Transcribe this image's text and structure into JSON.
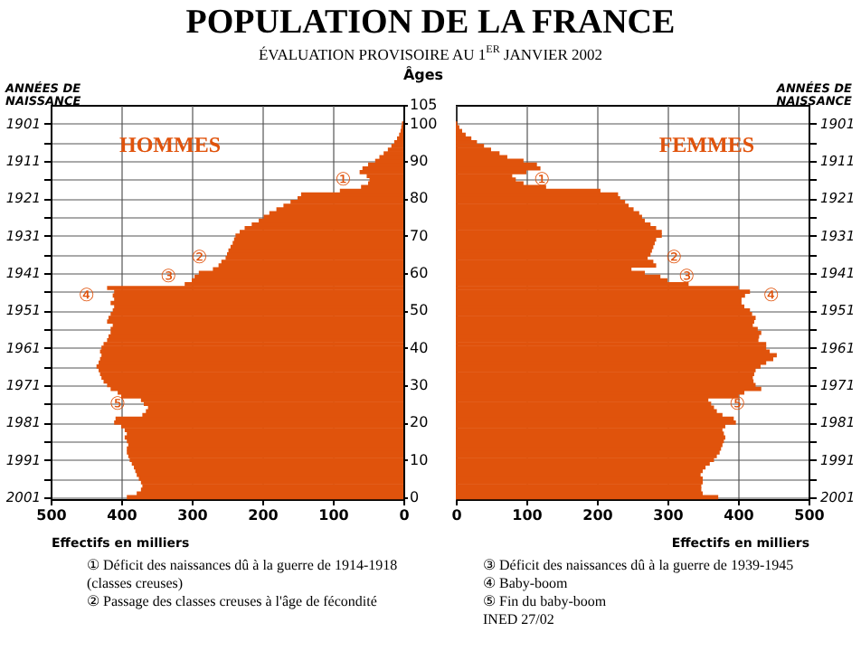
{
  "chart_data": [
    {
      "type": "bar",
      "orientation": "horizontal",
      "title": "POPULATION DE LA FRANCE",
      "subtitle": "ÉVALUATION PROVISOIRE AU 1$^{ER}$ JANVIER 2002",
      "xlabel": "Effectifs en milliers",
      "ylabel": "Âges",
      "y2label": "ANNÉES DE NAISSANCE",
      "x": [
        0,
        1,
        2,
        3,
        4,
        5,
        6,
        7,
        8,
        9,
        10,
        11,
        12,
        13,
        14,
        15,
        16,
        17,
        18,
        19,
        20,
        21,
        22,
        23,
        24,
        25,
        26,
        27,
        28,
        29,
        30,
        31,
        32,
        33,
        34,
        35,
        36,
        37,
        38,
        39,
        40,
        41,
        42,
        43,
        44,
        45,
        46,
        47,
        48,
        49,
        50,
        51,
        52,
        53,
        54,
        55,
        56,
        57,
        58,
        59,
        60,
        61,
        62,
        63,
        64,
        65,
        66,
        67,
        68,
        69,
        70,
        71,
        72,
        73,
        74,
        75,
        76,
        77,
        78,
        79,
        80,
        81,
        82,
        83,
        84,
        85,
        86,
        87,
        88,
        89,
        90,
        91,
        92,
        93,
        94,
        95,
        96,
        97,
        98,
        99,
        100
      ],
      "series": [
        {
          "name": "HOMMES",
          "color": "#e0530c",
          "values": [
            392,
            378,
            372,
            370,
            372,
            375,
            378,
            380,
            382,
            385,
            388,
            390,
            392,
            392,
            390,
            392,
            395,
            392,
            395,
            400,
            410,
            408,
            370,
            365,
            362,
            368,
            372,
            400,
            405,
            415,
            420,
            425,
            428,
            430,
            432,
            435,
            432,
            430,
            428,
            430,
            428,
            425,
            420,
            418,
            415,
            415,
            412,
            420,
            418,
            415,
            412,
            410,
            415,
            410,
            412,
            410,
            420,
            310,
            300,
            296,
            290,
            270,
            262,
            258,
            252,
            250,
            248,
            245,
            242,
            240,
            238,
            232,
            225,
            215,
            205,
            198,
            190,
            180,
            170,
            160,
            150,
            145,
            90,
            60,
            50,
            48,
            52,
            62,
            58,
            50,
            40,
            34,
            28,
            22,
            17,
            13,
            9,
            6,
            4,
            3,
            2
          ]
        }
      ],
      "xlim": [
        500,
        0
      ],
      "xticks": [
        500,
        400,
        300,
        200,
        100,
        0
      ],
      "ylim": [
        -0.5,
        105
      ],
      "yticks": [
        0,
        10,
        20,
        30,
        40,
        50,
        60,
        70,
        80,
        90,
        100,
        105
      ],
      "y2lim": [
        2001.5,
        1896
      ],
      "y2ticks": [
        1901,
        {
          "value": 1906,
          "label": null
        },
        1911,
        {
          "value": 1916,
          "label": null
        },
        1921,
        {
          "value": 1926,
          "label": null
        },
        1931,
        {
          "value": 1936,
          "label": null
        },
        1941,
        {
          "value": 1946,
          "label": null
        },
        1951,
        {
          "value": 1956,
          "label": null
        },
        1961,
        {
          "value": 1966,
          "label": null
        },
        1971,
        {
          "value": 1976,
          "label": null
        },
        1981,
        {
          "value": 1986,
          "label": null
        },
        1991,
        {
          "value": 1996,
          "label": null
        },
        2001
      ],
      "grid": true,
      "annotations": [
        {
          "text": "①",
          "x": 48,
          "y": 85
        },
        {
          "text": "②",
          "x": 252,
          "y": 64
        },
        {
          "text": "③",
          "x": 296,
          "y": 59
        },
        {
          "text": "④",
          "x": 412,
          "y": 54
        },
        {
          "text": "⑤",
          "x": 368,
          "y": 25
        },
        "① Déficit des naissances dû à la guerre de 1914-1918 (classes creuses)",
        "② Passage des classes creuses à l'âge de fécondité"
      ]
    },
    {
      "type": "bar",
      "orientation": "horizontal",
      "xlabel": "Effectifs en milliers",
      "y2label": "ANNÉES DE NAISSANCE",
      "x": [
        0,
        1,
        2,
        3,
        4,
        5,
        6,
        7,
        8,
        9,
        10,
        11,
        12,
        13,
        14,
        15,
        16,
        17,
        18,
        19,
        20,
        21,
        22,
        23,
        24,
        25,
        26,
        27,
        28,
        29,
        30,
        31,
        32,
        33,
        34,
        35,
        36,
        37,
        38,
        39,
        40,
        41,
        42,
        43,
        44,
        45,
        46,
        47,
        48,
        49,
        50,
        51,
        52,
        53,
        54,
        55,
        56,
        57,
        58,
        59,
        60,
        61,
        62,
        63,
        64,
        65,
        66,
        67,
        68,
        69,
        70,
        71,
        72,
        73,
        74,
        75,
        76,
        77,
        78,
        79,
        80,
        81,
        82,
        83,
        84,
        85,
        86,
        87,
        88,
        89,
        90,
        91,
        92,
        93,
        94,
        95,
        96,
        97,
        98,
        99,
        100
      ],
      "series": [
        {
          "name": "FEMMES",
          "color": "#e0530c",
          "values": [
            372,
            350,
            348,
            348,
            350,
            350,
            347,
            350,
            354,
            360,
            366,
            370,
            374,
            376,
            378,
            380,
            382,
            380,
            378,
            382,
            397,
            394,
            378,
            370,
            366,
            362,
            358,
            401,
            409,
            433,
            425,
            422,
            421,
            423,
            425,
            432,
            440,
            450,
            455,
            445,
            440,
            440,
            429,
            430,
            433,
            428,
            421,
            423,
            425,
            420,
            417,
            409,
            405,
            405,
            410,
            417,
            401,
            330,
            300,
            290,
            268,
            249,
            284,
            280,
            272,
            276,
            278,
            280,
            282,
            284,
            292,
            292,
            284,
            276,
            268,
            264,
            260,
            252,
            245,
            240,
            233,
            230,
            205,
            128,
            96,
            85,
            80,
            100,
            120,
            115,
            96,
            73,
            62,
            50,
            40,
            30,
            22,
            14,
            9,
            5,
            2
          ]
        }
      ],
      "xlim": [
        0,
        500
      ],
      "xticks": [
        0,
        100,
        200,
        300,
        400,
        500
      ],
      "ylim": [
        -0.5,
        105
      ],
      "y2lim": [
        2001.5,
        1896
      ],
      "y2ticks": [
        1901,
        {
          "value": 1906,
          "label": null
        },
        1911,
        {
          "value": 1916,
          "label": null
        },
        1921,
        {
          "value": 1926,
          "label": null
        },
        1931,
        {
          "value": 1936,
          "label": null
        },
        1941,
        {
          "value": 1946,
          "label": null
        },
        1951,
        {
          "value": 1956,
          "label": null
        },
        1961,
        {
          "value": 1966,
          "label": null
        },
        1971,
        {
          "value": 1976,
          "label": null
        },
        1981,
        {
          "value": 1986,
          "label": null
        },
        1991,
        {
          "value": 1996,
          "label": null
        },
        2001
      ],
      "grid": true,
      "annotations": [
        {
          "text": "①",
          "x": 85,
          "y": 85
        },
        {
          "text": "②",
          "x": 272,
          "y": 64
        },
        {
          "text": "③",
          "x": 290,
          "y": 59
        },
        {
          "text": "④",
          "x": 410,
          "y": 54
        },
        {
          "text": "⑤",
          "x": 362,
          "y": 25
        },
        "③ Déficit des naissances dû à la guerre de 1939-1945",
        "④ Baby-boom",
        "⑤ Fin du baby-boom",
        "INED 27/02"
      ]
    }
  ]
}
